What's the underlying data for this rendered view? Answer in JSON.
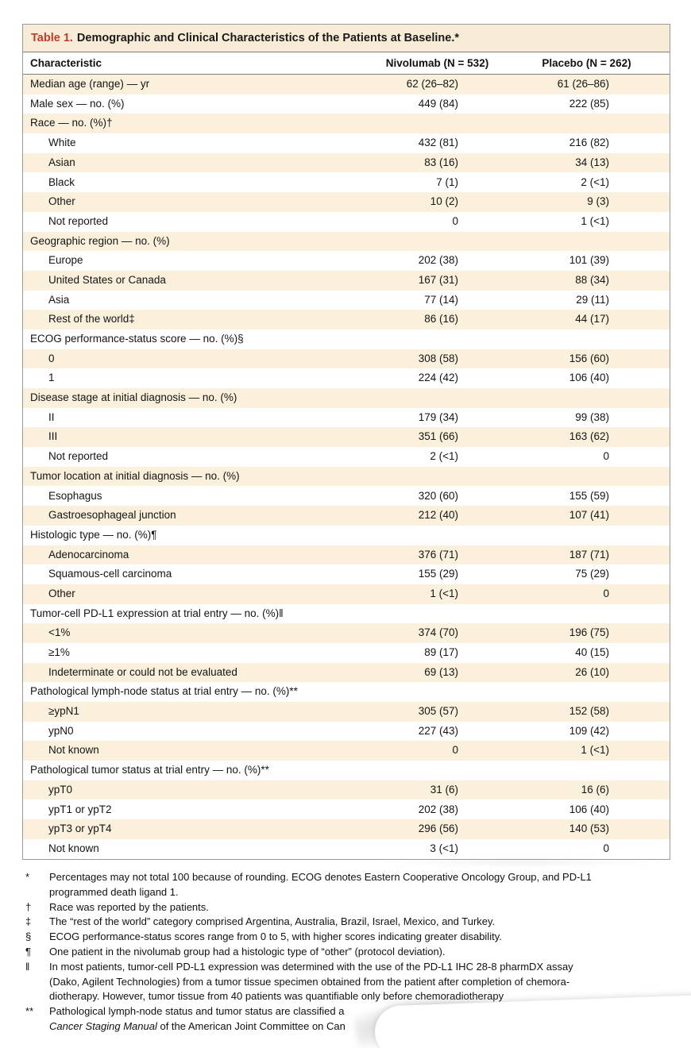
{
  "colors": {
    "stripe": "#faf0dc",
    "title_bar_bg": "#f9ecd7",
    "table_label_red": "#bf3b2e",
    "border": "#9b9b9b",
    "rule": "#7d7d7d",
    "text": "#1a1a1a"
  },
  "table": {
    "label": "Table 1.",
    "title": "Demographic and Clinical Characteristics of the Patients at Baseline.*",
    "columns": [
      "Characteristic",
      "Nivolumab (N = 532)",
      "Placebo (N = 262)"
    ],
    "rows": [
      {
        "label": "Median age (range) — yr",
        "indent": 0,
        "nivolumab": "62 (26–82)",
        "placebo": "61 (26–86)"
      },
      {
        "label": "Male sex — no. (%)",
        "indent": 0,
        "nivolumab": "449 (84)",
        "placebo": "222 (85)"
      },
      {
        "label": "Race — no. (%)†",
        "indent": 0,
        "nivolumab": "",
        "placebo": ""
      },
      {
        "label": "White",
        "indent": 1,
        "nivolumab": "432 (81)",
        "placebo": "216 (82)"
      },
      {
        "label": "Asian",
        "indent": 1,
        "nivolumab": "83 (16)",
        "placebo": "34 (13)"
      },
      {
        "label": "Black",
        "indent": 1,
        "nivolumab": "7 (1)",
        "placebo": "2 (<1)"
      },
      {
        "label": "Other",
        "indent": 1,
        "nivolumab": "10 (2)",
        "placebo": "9 (3)"
      },
      {
        "label": "Not reported",
        "indent": 1,
        "nivolumab": "0",
        "placebo": "1 (<1)"
      },
      {
        "label": "Geographic region — no. (%)",
        "indent": 0,
        "nivolumab": "",
        "placebo": ""
      },
      {
        "label": "Europe",
        "indent": 1,
        "nivolumab": "202 (38)",
        "placebo": "101 (39)"
      },
      {
        "label": "United States or Canada",
        "indent": 1,
        "nivolumab": "167 (31)",
        "placebo": "88 (34)"
      },
      {
        "label": "Asia",
        "indent": 1,
        "nivolumab": "77 (14)",
        "placebo": "29 (11)"
      },
      {
        "label": "Rest of the world‡",
        "indent": 1,
        "nivolumab": "86 (16)",
        "placebo": "44 (17)"
      },
      {
        "label": "ECOG performance-status score — no. (%)§",
        "indent": 0,
        "nivolumab": "",
        "placebo": ""
      },
      {
        "label": "0",
        "indent": 1,
        "nivolumab": "308 (58)",
        "placebo": "156 (60)"
      },
      {
        "label": "1",
        "indent": 1,
        "nivolumab": "224 (42)",
        "placebo": "106 (40)"
      },
      {
        "label": "Disease stage at initial diagnosis — no. (%)",
        "indent": 0,
        "nivolumab": "",
        "placebo": ""
      },
      {
        "label": "II",
        "indent": 1,
        "nivolumab": "179 (34)",
        "placebo": "99 (38)"
      },
      {
        "label": "III",
        "indent": 1,
        "nivolumab": "351 (66)",
        "placebo": "163 (62)"
      },
      {
        "label": "Not reported",
        "indent": 1,
        "nivolumab": "2 (<1)",
        "placebo": "0"
      },
      {
        "label": "Tumor location at initial diagnosis — no. (%)",
        "indent": 0,
        "nivolumab": "",
        "placebo": ""
      },
      {
        "label": "Esophagus",
        "indent": 1,
        "nivolumab": "320 (60)",
        "placebo": "155 (59)"
      },
      {
        "label": "Gastroesophageal junction",
        "indent": 1,
        "nivolumab": "212 (40)",
        "placebo": "107 (41)"
      },
      {
        "label": "Histologic type — no. (%)¶",
        "indent": 0,
        "nivolumab": "",
        "placebo": ""
      },
      {
        "label": "Adenocarcinoma",
        "indent": 1,
        "nivolumab": "376 (71)",
        "placebo": "187 (71)"
      },
      {
        "label": "Squamous-cell carcinoma",
        "indent": 1,
        "nivolumab": "155 (29)",
        "placebo": "75 (29)"
      },
      {
        "label": "Other",
        "indent": 1,
        "nivolumab": "1 (<1)",
        "placebo": "0"
      },
      {
        "label": "Tumor-cell PD-L1 expression at trial entry — no. (%)‖",
        "indent": 0,
        "nivolumab": "",
        "placebo": ""
      },
      {
        "label": "<1%",
        "indent": 1,
        "nivolumab": "374 (70)",
        "placebo": "196 (75)"
      },
      {
        "label": "≥1%",
        "indent": 1,
        "nivolumab": "89 (17)",
        "placebo": "40 (15)"
      },
      {
        "label": "Indeterminate or could not be evaluated",
        "indent": 1,
        "nivolumab": "69 (13)",
        "placebo": "26 (10)"
      },
      {
        "label": "Pathological lymph-node status at trial entry — no. (%)**",
        "indent": 0,
        "nivolumab": "",
        "placebo": ""
      },
      {
        "label": "≥ypN1",
        "indent": 1,
        "nivolumab": "305 (57)",
        "placebo": "152 (58)"
      },
      {
        "label": "ypN0",
        "indent": 1,
        "nivolumab": "227 (43)",
        "placebo": "109 (42)"
      },
      {
        "label": "Not known",
        "indent": 1,
        "nivolumab": "0",
        "placebo": "1 (<1)"
      },
      {
        "label": "Pathological tumor status at trial entry — no. (%)**",
        "indent": 0,
        "nivolumab": "",
        "placebo": ""
      },
      {
        "label": "ypT0",
        "indent": 1,
        "nivolumab": "31 (6)",
        "placebo": "16 (6)"
      },
      {
        "label": "ypT1 or ypT2",
        "indent": 1,
        "nivolumab": "202 (38)",
        "placebo": "106 (40)"
      },
      {
        "label": "ypT3 or ypT4",
        "indent": 1,
        "nivolumab": "296 (56)",
        "placebo": "140 (53)"
      },
      {
        "label": "Not known",
        "indent": 1,
        "nivolumab": "3 (<1)",
        "placebo": "0"
      }
    ]
  },
  "footnotes": [
    {
      "marker": "*",
      "lines": [
        [
          {
            "text": "Percentages may not total 100 because of rounding. ECOG denotes Eastern Cooperative Oncology Group, and PD-L1"
          }
        ],
        [
          {
            "text": "programmed death ligand 1."
          }
        ]
      ]
    },
    {
      "marker": "†",
      "lines": [
        [
          {
            "text": "Race was reported by the patients."
          }
        ]
      ]
    },
    {
      "marker": "‡",
      "lines": [
        [
          {
            "text": "The “rest of the world” category comprised Argentina, Australia, Brazil, Israel, Mexico, and Turkey."
          }
        ]
      ]
    },
    {
      "marker": "§",
      "lines": [
        [
          {
            "text": "ECOG performance-status scores range from 0 to 5, with higher scores indicating greater disability."
          }
        ]
      ]
    },
    {
      "marker": "¶",
      "lines": [
        [
          {
            "text": "One patient in the nivolumab group had a histologic type of “other” (protocol deviation)."
          }
        ]
      ]
    },
    {
      "marker": "‖",
      "lines": [
        [
          {
            "text": "In most patients, tumor-cell PD-L1 expression was determined with the use of the PD-L1 IHC 28-8 pharmDX assay"
          }
        ],
        [
          {
            "text": "(Dako, Agilent Technologies) from a tumor tissue specimen obtained from the patient after completion of chemora-"
          }
        ],
        [
          {
            "text": "diotherapy. However, tumor tissue from 40 patients was quantifiable only before chemoradiotherapy"
          }
        ]
      ]
    },
    {
      "marker": "**",
      "lines": [
        [
          {
            "text": "Pathological lymph-node status and tumor status are classified a"
          }
        ],
        [
          {
            "text": "Cancer Staging Manual",
            "italic": true
          },
          {
            "text": " of the American Joint Committee on Can"
          }
        ]
      ]
    }
  ]
}
